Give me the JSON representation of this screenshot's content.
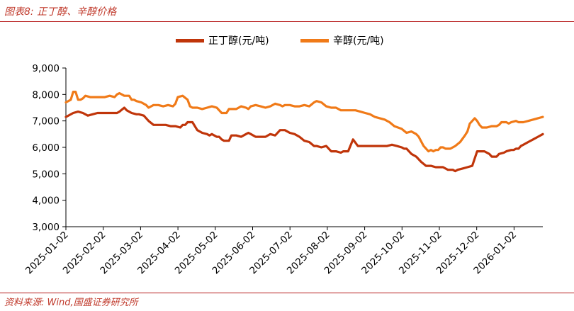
{
  "header": {
    "title": "图表8:  正丁醇、辛醇价格"
  },
  "footer": {
    "source": "资料来源:  Wind,国盛证券研究所"
  },
  "colors": {
    "series1": "#c0350a",
    "series2": "#f07a18",
    "accent": "#b71c1c"
  },
  "chart_data": {
    "type": "line",
    "title": "",
    "xlabel": "",
    "ylabel": "",
    "ylim": [
      3000,
      9000
    ],
    "yticks": [
      "3,000",
      "4,000",
      "5,000",
      "6,000",
      "7,000",
      "8,000",
      "9,000"
    ],
    "yticks_values": [
      3000,
      4000,
      5000,
      6000,
      7000,
      8000,
      9000
    ],
    "xticks": [
      "2025-01-02",
      "2025-02-02",
      "2025-03-02",
      "2025-04-02",
      "2025-05-02",
      "2025-06-02",
      "2025-07-02",
      "2025-08-02",
      "2025-09-02",
      "2025-10-02",
      "2025-11-02",
      "2025-12-02",
      "2026-01-02"
    ],
    "x_range_days": [
      0,
      392
    ],
    "series": [
      {
        "name": "正丁醇(元/吨)",
        "color": "#c0350a",
        "x": [
          0,
          6,
          10,
          14,
          18,
          22,
          26,
          30,
          36,
          40,
          42,
          44,
          48,
          50,
          54,
          58,
          60,
          64,
          68,
          72,
          76,
          82,
          86,
          90,
          94,
          96,
          98,
          100,
          104,
          108,
          112,
          116,
          118,
          120,
          124,
          126,
          128,
          130,
          134,
          136,
          140,
          144,
          148,
          150,
          152,
          156,
          160,
          164,
          168,
          172,
          176,
          180,
          184,
          188,
          192,
          196,
          200,
          204,
          206,
          210,
          214,
          218,
          222,
          226,
          228,
          232,
          236,
          240,
          242,
          246,
          250,
          256,
          260,
          264,
          268,
          272,
          276,
          278,
          280,
          284,
          288,
          292,
          296,
          300,
          304,
          306,
          310,
          312,
          314,
          318,
          320,
          322,
          326,
          330,
          334,
          338,
          340,
          344,
          348,
          350,
          354,
          356,
          360,
          362,
          366,
          368,
          370,
          372,
          374,
          376,
          380,
          384,
          388,
          392
        ],
        "values": [
          7150,
          7300,
          7350,
          7300,
          7200,
          7250,
          7300,
          7300,
          7300,
          7300,
          7300,
          7350,
          7500,
          7400,
          7300,
          7250,
          7250,
          7200,
          7000,
          6850,
          6850,
          6850,
          6800,
          6800,
          6750,
          6850,
          6850,
          6950,
          6950,
          6650,
          6550,
          6500,
          6450,
          6500,
          6400,
          6400,
          6300,
          6250,
          6250,
          6450,
          6450,
          6400,
          6500,
          6550,
          6500,
          6400,
          6400,
          6400,
          6500,
          6450,
          6650,
          6650,
          6550,
          6500,
          6400,
          6250,
          6200,
          6050,
          6050,
          6000,
          6050,
          5850,
          5850,
          5800,
          5850,
          5850,
          6300,
          6050,
          6050,
          6050,
          6050,
          6050,
          6050,
          6050,
          6100,
          6050,
          6000,
          5950,
          5950,
          5750,
          5650,
          5450,
          5300,
          5300,
          5250,
          5250,
          5250,
          5200,
          5150,
          5150,
          5100,
          5150,
          5200,
          5250,
          5300,
          5850,
          5850,
          5850,
          5750,
          5650,
          5650,
          5750,
          5800,
          5850,
          5900,
          5900,
          5950,
          5950,
          6050,
          6100,
          6200,
          6300,
          6400,
          6500
        ]
      },
      {
        "name": "辛醇(元/吨)",
        "color": "#f07a18",
        "x": [
          0,
          4,
          6,
          8,
          10,
          12,
          14,
          16,
          20,
          24,
          28,
          32,
          36,
          40,
          42,
          44,
          48,
          52,
          54,
          56,
          58,
          62,
          66,
          68,
          70,
          72,
          76,
          80,
          84,
          88,
          90,
          92,
          96,
          100,
          102,
          104,
          108,
          112,
          116,
          120,
          124,
          126,
          128,
          132,
          134,
          136,
          140,
          144,
          148,
          150,
          152,
          156,
          160,
          164,
          168,
          172,
          176,
          178,
          180,
          184,
          188,
          192,
          196,
          200,
          204,
          206,
          210,
          214,
          218,
          222,
          226,
          230,
          234,
          236,
          238,
          242,
          246,
          250,
          254,
          258,
          262,
          266,
          270,
          276,
          280,
          284,
          288,
          290,
          294,
          298,
          300,
          302,
          304,
          306,
          308,
          310,
          312,
          316,
          320,
          324,
          328,
          330,
          332,
          336,
          338,
          340,
          342,
          346,
          350,
          354,
          356,
          358,
          362,
          364,
          366,
          370,
          372,
          376,
          380,
          384,
          388,
          392
        ],
        "values": [
          7700,
          7800,
          8100,
          8100,
          7800,
          7800,
          7850,
          7950,
          7900,
          7900,
          7900,
          7900,
          7950,
          7900,
          8000,
          8050,
          7950,
          7950,
          7800,
          7800,
          7750,
          7700,
          7600,
          7500,
          7550,
          7600,
          7600,
          7550,
          7600,
          7550,
          7650,
          7900,
          7950,
          7800,
          7550,
          7500,
          7500,
          7450,
          7500,
          7550,
          7500,
          7400,
          7300,
          7300,
          7450,
          7450,
          7450,
          7550,
          7500,
          7450,
          7550,
          7600,
          7550,
          7500,
          7550,
          7650,
          7600,
          7550,
          7600,
          7600,
          7550,
          7550,
          7600,
          7550,
          7700,
          7750,
          7700,
          7550,
          7500,
          7500,
          7400,
          7400,
          7400,
          7400,
          7400,
          7350,
          7300,
          7250,
          7150,
          7100,
          7050,
          6950,
          6800,
          6700,
          6550,
          6600,
          6500,
          6400,
          6050,
          5850,
          5900,
          5850,
          5900,
          5900,
          6000,
          6000,
          5950,
          5950,
          6050,
          6200,
          6450,
          6600,
          6900,
          7100,
          7000,
          6850,
          6750,
          6750,
          6800,
          6800,
          6850,
          6950,
          6950,
          6900,
          6950,
          7000,
          6950,
          6950,
          7000,
          7050,
          7100,
          7150
        ]
      }
    ]
  }
}
